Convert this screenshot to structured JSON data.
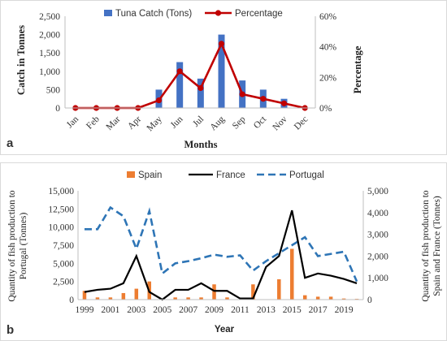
{
  "chart_data": [
    {
      "panel": "a",
      "type": "bar+line",
      "categories": [
        "Jan",
        "Feb",
        "Mar",
        "Apr",
        "May",
        "Jun",
        "Jul",
        "Aug",
        "Sep",
        "Oct",
        "Nov",
        "Dec"
      ],
      "series": [
        {
          "name": "Tuna Catch (Tons)",
          "type": "bar",
          "axis": "left",
          "color": "#4472c4",
          "values": [
            0,
            0,
            0,
            0,
            500,
            1250,
            800,
            2000,
            750,
            500,
            250,
            0
          ]
        },
        {
          "name": "Percentage",
          "type": "line",
          "axis": "right",
          "color": "#c00000",
          "values": [
            0,
            0,
            0,
            0,
            5,
            24,
            13,
            42,
            9,
            6,
            3,
            0
          ]
        }
      ],
      "xlabel": "Months",
      "ylabel": "Catch in Tonnes",
      "y2label": "Percentage",
      "ylim": [
        0,
        2500
      ],
      "y2lim": [
        0,
        60
      ],
      "yticks": [
        "0",
        "500",
        "1,000",
        "1,500",
        "2,000",
        "2,500"
      ],
      "y2ticks": [
        "0%",
        "20%",
        "40%",
        "60%"
      ],
      "legend_position": "top",
      "grid": false
    },
    {
      "panel": "b",
      "type": "bar+line",
      "x": [
        1999,
        2000,
        2001,
        2002,
        2003,
        2004,
        2005,
        2006,
        2007,
        2008,
        2009,
        2010,
        2011,
        2012,
        2013,
        2014,
        2015,
        2016,
        2017,
        2018,
        2019,
        2020
      ],
      "xticks": [
        "1999",
        "2001",
        "2003",
        "2005",
        "2007",
        "2009",
        "2011",
        "2013",
        "2015",
        "2017",
        "2019"
      ],
      "series": [
        {
          "name": "Spain",
          "type": "bar",
          "axis": "left",
          "color": "#ed7d31",
          "values": [
            1200,
            300,
            300,
            900,
            1500,
            2500,
            0,
            300,
            300,
            300,
            2100,
            300,
            0,
            2100,
            0,
            2800,
            7000,
            600,
            400,
            400,
            150,
            100
          ]
        },
        {
          "name": "France",
          "type": "line",
          "axis": "right",
          "color": "#000000",
          "values": [
            350,
            450,
            500,
            750,
            2000,
            350,
            0,
            450,
            450,
            750,
            400,
            400,
            50,
            50,
            1500,
            2000,
            4100,
            1000,
            1200,
            1100,
            950,
            750
          ]
        },
        {
          "name": "Portugal",
          "type": "dashed-line",
          "axis": "left",
          "color": "#2e75b6",
          "values": [
            9700,
            9700,
            12700,
            11500,
            7000,
            12200,
            3600,
            5000,
            5300,
            5700,
            6200,
            5900,
            6100,
            4000,
            5300,
            6400,
            7500,
            8600,
            6000,
            6300,
            6600,
            2500
          ]
        }
      ],
      "xlabel": "Year",
      "ylabel": "Quantity of fish production to Portugal (Tonnes)",
      "y2label": "Quantity of fish production to Spain and France (Tonnes)",
      "ylim": [
        0,
        15000
      ],
      "y2lim": [
        0,
        5000
      ],
      "yticks": [
        "0",
        "2,500",
        "5,000",
        "7,500",
        "10,000",
        "12,500",
        "15,000"
      ],
      "y2ticks": [
        "0",
        "1,000",
        "2,000",
        "3,000",
        "4,000",
        "5,000"
      ],
      "legend_position": "top",
      "grid": false
    }
  ],
  "labels": {
    "panel_a": "a",
    "panel_b": "b"
  }
}
